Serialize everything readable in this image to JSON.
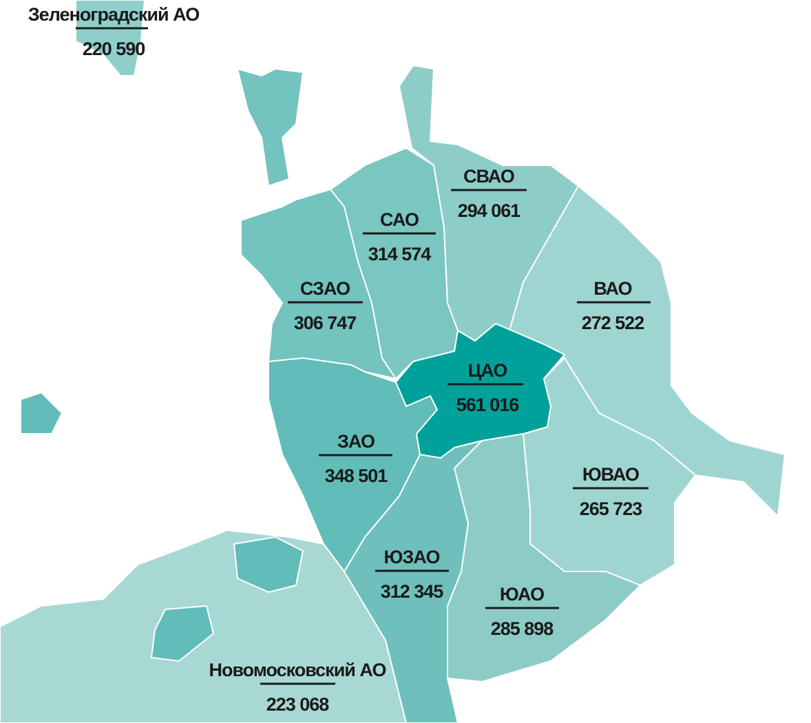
{
  "districts": [
    {
      "name": "Зеленоградский АО",
      "value": "220 590"
    },
    {
      "name": "СВАО",
      "value": "294 061"
    },
    {
      "name": "САО",
      "value": "314 574"
    },
    {
      "name": "СЗАО",
      "value": "306 747"
    },
    {
      "name": "ВАО",
      "value": "272 522"
    },
    {
      "name": "ЦАО",
      "value": "561 016"
    },
    {
      "name": "ЗАО",
      "value": "348 501"
    },
    {
      "name": "ЮВАО",
      "value": "265 723"
    },
    {
      "name": "ЮЗАО",
      "value": "312 345"
    },
    {
      "name": "ЮАО",
      "value": "285 898"
    },
    {
      "name": "Новомосковский АО",
      "value": "223 068"
    }
  ]
}
